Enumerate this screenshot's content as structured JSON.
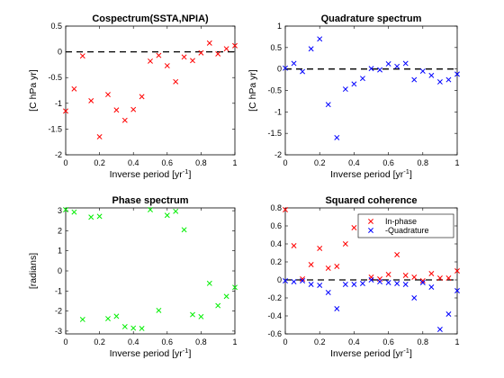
{
  "chart_data": [
    {
      "type": "scatter",
      "title": "Cospectrum(SSTA,NPIA)",
      "xlabel": "Inverse period [yr",
      "xlabel_sup": "-1",
      "xlabel_end": "]",
      "ylabel": "[C hPa yr]",
      "xlim": [
        0,
        1
      ],
      "ylim": [
        -2,
        0.5
      ],
      "xticks": [
        0,
        0.2,
        0.4,
        0.6,
        0.8,
        1
      ],
      "xtick_labels": [
        "0",
        "0.2",
        "0.4",
        "0.6",
        "0.8",
        "1"
      ],
      "yticks": [
        -2,
        -1.5,
        -1,
        -0.5,
        0,
        0.5
      ],
      "ytick_labels": [
        "-2",
        "-1.5",
        "-1",
        "-0.5",
        "0",
        "0.5"
      ],
      "zero_line": true,
      "series": [
        {
          "color": "#ff0000",
          "marker": "x",
          "x": [
            0,
            0.05,
            0.1,
            0.15,
            0.2,
            0.25,
            0.3,
            0.35,
            0.4,
            0.45,
            0.5,
            0.55,
            0.6,
            0.65,
            0.7,
            0.75,
            0.8,
            0.85,
            0.9,
            0.95,
            1
          ],
          "y": [
            -1.15,
            -0.72,
            -0.08,
            -0.95,
            -1.65,
            -0.83,
            -1.13,
            -1.33,
            -1.12,
            -0.87,
            -0.18,
            -0.07,
            -0.27,
            -0.58,
            -0.1,
            -0.17,
            -0.02,
            0.17,
            -0.04,
            0.06,
            0.12
          ]
        }
      ]
    },
    {
      "type": "scatter",
      "title": "Quadrature spectrum",
      "xlabel": "Inverse period [yr",
      "xlabel_sup": "-1",
      "xlabel_end": "]",
      "ylabel": "[C hPa yr]",
      "xlim": [
        0,
        1
      ],
      "ylim": [
        -2,
        1
      ],
      "xticks": [
        0,
        0.2,
        0.4,
        0.6,
        0.8,
        1
      ],
      "xtick_labels": [
        "0",
        "0.2",
        "0.4",
        "0.6",
        "0.8",
        "1"
      ],
      "yticks": [
        -2,
        -1.5,
        -1,
        -0.5,
        0,
        0.5,
        1
      ],
      "ytick_labels": [
        "-2",
        "-1.5",
        "-1",
        "-0.5",
        "0",
        "0.5",
        "1"
      ],
      "zero_line": true,
      "series": [
        {
          "color": "#0000ff",
          "marker": "x",
          "x": [
            0,
            0.05,
            0.1,
            0.15,
            0.2,
            0.25,
            0.3,
            0.35,
            0.4,
            0.45,
            0.5,
            0.55,
            0.6,
            0.65,
            0.7,
            0.75,
            0.8,
            0.85,
            0.9,
            0.95,
            1
          ],
          "y": [
            0.02,
            0.13,
            -0.06,
            0.47,
            0.7,
            -0.83,
            -1.6,
            -0.47,
            -0.35,
            -0.22,
            0.01,
            -0.02,
            0.12,
            0.06,
            0.13,
            -0.25,
            -0.05,
            -0.15,
            -0.3,
            -0.25,
            -0.12
          ]
        }
      ]
    },
    {
      "type": "scatter",
      "title": "Phase spectrum",
      "xlabel": "Inverse period [yr",
      "xlabel_sup": "-1",
      "xlabel_end": "]",
      "ylabel": "[radians]",
      "xlim": [
        0,
        1
      ],
      "ylim": [
        -3.14,
        3.14
      ],
      "xticks": [
        0,
        0.2,
        0.4,
        0.6,
        0.8,
        1
      ],
      "xtick_labels": [
        "0",
        "0.2",
        "0.4",
        "0.6",
        "0.8",
        "1"
      ],
      "yticks": [
        -3,
        -2,
        -1,
        0,
        1,
        2,
        3
      ],
      "ytick_labels": [
        "-3",
        "-2",
        "-1",
        "0",
        "1",
        "2",
        "3"
      ],
      "zero_line": false,
      "series": [
        {
          "color": "#00ee00",
          "marker": "x",
          "x": [
            0,
            0.05,
            0.1,
            0.15,
            0.2,
            0.25,
            0.3,
            0.35,
            0.4,
            0.45,
            0.5,
            0.55,
            0.6,
            0.65,
            0.7,
            0.75,
            0.8,
            0.85,
            0.9,
            0.95,
            1
          ],
          "y": [
            3.05,
            2.93,
            -2.42,
            2.68,
            2.72,
            -2.38,
            -2.26,
            -2.78,
            -2.85,
            -2.87,
            3.05,
            -1.97,
            2.77,
            2.97,
            2.05,
            -2.18,
            -2.28,
            -0.62,
            -1.73,
            -1.27,
            -0.82
          ]
        }
      ]
    },
    {
      "type": "scatter",
      "title": "Squared coherence",
      "xlabel": "Inverse period [yr",
      "xlabel_sup": "-1",
      "xlabel_end": "]",
      "ylabel": "",
      "xlim": [
        0,
        1
      ],
      "ylim": [
        -0.6,
        0.8
      ],
      "xticks": [
        0,
        0.2,
        0.4,
        0.6,
        0.8,
        1
      ],
      "xtick_labels": [
        "0",
        "0.2",
        "0.4",
        "0.6",
        "0.8",
        "1"
      ],
      "yticks": [
        -0.6,
        -0.4,
        -0.2,
        0,
        0.2,
        0.4,
        0.6,
        0.8
      ],
      "ytick_labels": [
        "-0.6",
        "-0.4",
        "-0.2",
        "0",
        "0.2",
        "0.4",
        "0.6",
        "0.8"
      ],
      "zero_line": true,
      "legend": "top-right",
      "series": [
        {
          "name": "In-phase",
          "color": "#ff0000",
          "marker": "x",
          "x": [
            0,
            0.05,
            0.1,
            0.15,
            0.2,
            0.25,
            0.3,
            0.35,
            0.4,
            0.45,
            0.5,
            0.55,
            0.6,
            0.65,
            0.7,
            0.75,
            0.8,
            0.85,
            0.9,
            0.95,
            1
          ],
          "y": [
            0.78,
            0.38,
            0.01,
            0.17,
            0.35,
            0.13,
            0.15,
            0.4,
            0.58,
            0.5,
            0.03,
            0.01,
            0.06,
            0.28,
            0.05,
            0.03,
            -0.01,
            0.07,
            0.02,
            0.02,
            0.1
          ]
        },
        {
          "name": "-Quadrature",
          "color": "#0000ff",
          "marker": "x",
          "x": [
            0,
            0.05,
            0.1,
            0.15,
            0.2,
            0.25,
            0.3,
            0.35,
            0.4,
            0.45,
            0.5,
            0.55,
            0.6,
            0.65,
            0.7,
            0.75,
            0.8,
            0.85,
            0.9,
            0.95,
            1
          ],
          "y": [
            -0.01,
            -0.02,
            -0.01,
            -0.05,
            -0.06,
            -0.14,
            -0.32,
            -0.05,
            -0.05,
            -0.04,
            0.0,
            -0.02,
            -0.03,
            -0.04,
            -0.05,
            -0.2,
            -0.03,
            -0.08,
            -0.55,
            -0.38,
            -0.12
          ]
        }
      ]
    }
  ]
}
